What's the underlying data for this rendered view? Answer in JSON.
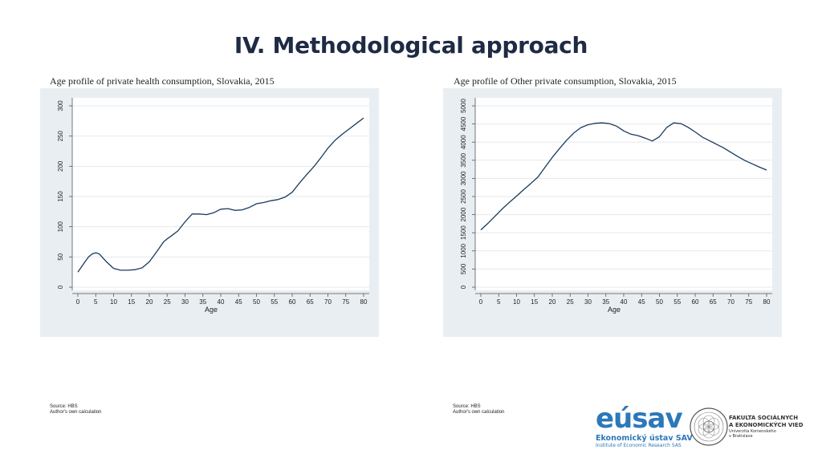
{
  "slide": {
    "title": "IV. Methodological approach"
  },
  "chart_data": [
    {
      "type": "line",
      "title": "Age profile of private health consumption, Slovakia, 2015",
      "xlabel": "Age",
      "ylabel": "",
      "xlim": [
        0,
        80
      ],
      "ylim": [
        0,
        300
      ],
      "xticks": [
        0,
        5,
        10,
        15,
        20,
        25,
        30,
        35,
        40,
        45,
        50,
        55,
        60,
        65,
        70,
        75,
        80
      ],
      "yticks": [
        0,
        50,
        100,
        150,
        200,
        250,
        300
      ],
      "grid": true,
      "x": [
        0,
        2,
        3,
        4,
        5,
        6,
        8,
        10,
        12,
        14,
        16,
        18,
        20,
        22,
        24,
        25,
        26,
        28,
        30,
        32,
        34,
        36,
        38,
        40,
        42,
        44,
        46,
        48,
        50,
        52,
        54,
        56,
        58,
        60,
        62,
        64,
        66,
        68,
        70,
        72,
        74,
        76,
        78,
        80
      ],
      "values": [
        25,
        42,
        50,
        55,
        57,
        55,
        42,
        31,
        28,
        28,
        29,
        32,
        42,
        58,
        75,
        80,
        84,
        93,
        108,
        121,
        121,
        120,
        123,
        129,
        130,
        127,
        128,
        132,
        138,
        140,
        143,
        145,
        149,
        157,
        172,
        186,
        199,
        214,
        230,
        243,
        253,
        262,
        271,
        280
      ],
      "source": [
        "Source: HBS",
        "Author's own calculation"
      ]
    },
    {
      "type": "line",
      "title": "Age profile of Other private consumption, Slovakia, 2015",
      "xlabel": "Age",
      "ylabel": "",
      "xlim": [
        0,
        80
      ],
      "ylim": [
        0,
        5000
      ],
      "xticks": [
        0,
        5,
        10,
        15,
        20,
        25,
        30,
        35,
        40,
        45,
        50,
        55,
        60,
        65,
        70,
        75,
        80
      ],
      "yticks": [
        0,
        500,
        1000,
        1500,
        2000,
        2500,
        3000,
        3500,
        4000,
        4500,
        5000
      ],
      "grid": true,
      "x": [
        0,
        2,
        4,
        6,
        8,
        10,
        12,
        14,
        16,
        18,
        20,
        22,
        24,
        26,
        28,
        30,
        32,
        34,
        36,
        38,
        40,
        42,
        44,
        46,
        48,
        50,
        52,
        54,
        56,
        58,
        60,
        62,
        64,
        66,
        68,
        70,
        72,
        74,
        76,
        78,
        80
      ],
      "values": [
        1580,
        1760,
        1960,
        2160,
        2340,
        2510,
        2690,
        2860,
        3040,
        3310,
        3580,
        3820,
        4050,
        4250,
        4400,
        4480,
        4520,
        4530,
        4510,
        4440,
        4310,
        4220,
        4180,
        4110,
        4030,
        4150,
        4400,
        4530,
        4510,
        4410,
        4280,
        4140,
        4040,
        3940,
        3840,
        3720,
        3600,
        3490,
        3400,
        3310,
        3230
      ],
      "source": [
        "Source: HBS",
        "Author's own calculation"
      ]
    }
  ],
  "logos": {
    "eusav_word_a": "eú",
    "eusav_word_b": "sav",
    "eusav_line1": "Ekonomický ústav SAV",
    "eusav_line2": "Institute of Economic Research SAS",
    "fses_line1": "FAKULTA SOCIÁLNYCH",
    "fses_line2": "A EKONOMICKÝCH VIED",
    "fses_line3": "Univerzita Komenského",
    "fses_line4": "v Bratislave"
  },
  "colors": {
    "line": "#1a3a5c",
    "panel_bg": "#e8eef2",
    "title": "#1f2a44",
    "logo_blue": "#2c78b8"
  }
}
